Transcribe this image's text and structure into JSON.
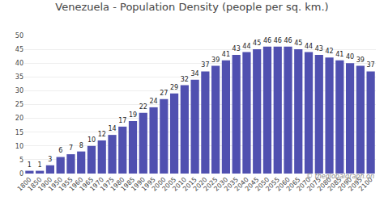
{
  "chart_data": {
    "type": "bar",
    "title": "Venezuela - Population Density (people per sq. km.)",
    "categories": [
      "1800",
      "1850",
      "1900",
      "1950",
      "1955",
      "1960",
      "1965",
      "1970",
      "1975",
      "1980",
      "1985",
      "1990",
      "1995",
      "2000",
      "2005",
      "2010",
      "2015",
      "2020",
      "2025",
      "2030",
      "2035",
      "2040",
      "2045",
      "2050",
      "2055",
      "2060",
      "2065",
      "2070",
      "2075",
      "2080",
      "2085",
      "2090",
      "2095",
      "2100"
    ],
    "values": [
      1,
      1,
      3,
      6,
      7,
      8,
      10,
      12,
      14,
      17,
      19,
      22,
      24,
      27,
      29,
      32,
      34,
      37,
      39,
      41,
      43,
      44,
      45,
      46,
      46,
      46,
      45,
      44,
      43,
      42,
      41,
      40,
      39,
      37
    ],
    "color": "#5050B0",
    "ylim": [
      0,
      50
    ],
    "yticks": [
      0,
      5,
      10,
      15,
      20,
      25,
      30,
      35,
      40,
      45,
      50
    ],
    "grid": true,
    "data_labels": true,
    "annotations": [
      "© theglobalgraph.on"
    ]
  }
}
